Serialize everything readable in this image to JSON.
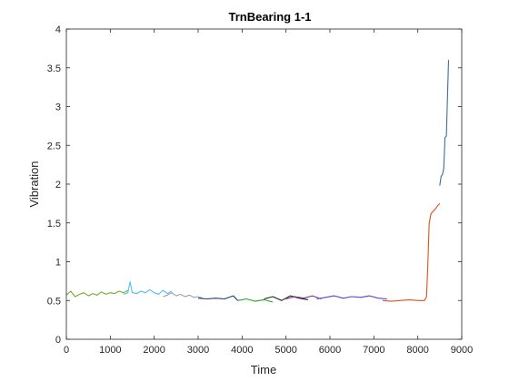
{
  "chart_data": {
    "type": "line",
    "title": "TrnBearing 1-1",
    "xlabel": "Time",
    "ylabel": "Vibration",
    "xlim": [
      0,
      9000
    ],
    "ylim": [
      0,
      4
    ],
    "xticks": [
      0,
      1000,
      2000,
      3000,
      4000,
      5000,
      6000,
      7000,
      8000,
      9000
    ],
    "yticks": [
      0,
      0.5,
      1,
      1.5,
      2,
      2.5,
      3,
      3.5,
      4
    ],
    "xtick_labels": [
      "0",
      "1000",
      "2000",
      "3000",
      "4000",
      "5000",
      "6000",
      "7000",
      "8000",
      "9000"
    ],
    "ytick_labels": [
      "0",
      "0.5",
      "1",
      "1.5",
      "2",
      "2.5",
      "3",
      "3.5",
      "4"
    ],
    "grid": false,
    "series": [
      {
        "color": "#77AC30",
        "x": [
          0,
          100,
          200,
          300,
          400,
          500,
          600,
          700,
          800,
          900,
          1000,
          1100,
          1200,
          1300,
          1400
        ],
        "y": [
          0.57,
          0.62,
          0.55,
          0.58,
          0.6,
          0.56,
          0.59,
          0.57,
          0.61,
          0.58,
          0.6,
          0.59,
          0.62,
          0.6,
          0.63
        ]
      },
      {
        "color": "#4DBEEE",
        "x": [
          1300,
          1400,
          1450,
          1500,
          1600,
          1700,
          1800,
          1900,
          2000,
          2100,
          2200,
          2300,
          2400
        ],
        "y": [
          0.58,
          0.6,
          0.74,
          0.6,
          0.59,
          0.62,
          0.6,
          0.64,
          0.6,
          0.58,
          0.63,
          0.59,
          0.62
        ]
      },
      {
        "color": "#A0A0A0",
        "x": [
          2200,
          2300,
          2400,
          2500,
          2600,
          2700,
          2800,
          2900,
          3000,
          3100
        ],
        "y": [
          0.55,
          0.57,
          0.6,
          0.56,
          0.58,
          0.55,
          0.57,
          0.54,
          0.55,
          0.53
        ]
      },
      {
        "color": "#1F3A6E",
        "x": [
          3000,
          3200,
          3400,
          3600,
          3800,
          3900
        ],
        "y": [
          0.53,
          0.52,
          0.53,
          0.52,
          0.56,
          0.5
        ]
      },
      {
        "color": "#2CA02C",
        "x": [
          3900,
          4100,
          4300,
          4500,
          4700
        ],
        "y": [
          0.5,
          0.52,
          0.49,
          0.51,
          0.48
        ]
      },
      {
        "color": "#1F1F1F",
        "x": [
          4500,
          4700,
          4900,
          5100,
          5300,
          5500
        ],
        "y": [
          0.52,
          0.55,
          0.5,
          0.56,
          0.53,
          0.51
        ]
      },
      {
        "color": "#7E2F8E",
        "x": [
          5000,
          5200,
          5400,
          5600,
          5800
        ],
        "y": [
          0.52,
          0.55,
          0.53,
          0.56,
          0.52
        ]
      },
      {
        "color": "#5A3FD6",
        "x": [
          5700,
          5900,
          6100,
          6300,
          6500,
          6700,
          6900,
          7100,
          7300
        ],
        "y": [
          0.52,
          0.54,
          0.56,
          0.53,
          0.55,
          0.54,
          0.56,
          0.53,
          0.52
        ]
      },
      {
        "color": "#D95319",
        "x": [
          7200,
          7400,
          7600,
          7800,
          8000,
          8150,
          8200,
          8230,
          8260,
          8300,
          8350,
          8400,
          8450,
          8500
        ],
        "y": [
          0.5,
          0.49,
          0.5,
          0.51,
          0.5,
          0.5,
          0.55,
          1.0,
          1.5,
          1.62,
          1.65,
          1.68,
          1.72,
          1.75
        ]
      },
      {
        "color": "#3A6E99",
        "x": [
          8500,
          8530,
          8560,
          8590,
          8620,
          8650,
          8680,
          8700
        ],
        "y": [
          1.98,
          2.1,
          2.12,
          2.2,
          2.6,
          2.62,
          3.2,
          3.6
        ]
      }
    ]
  }
}
